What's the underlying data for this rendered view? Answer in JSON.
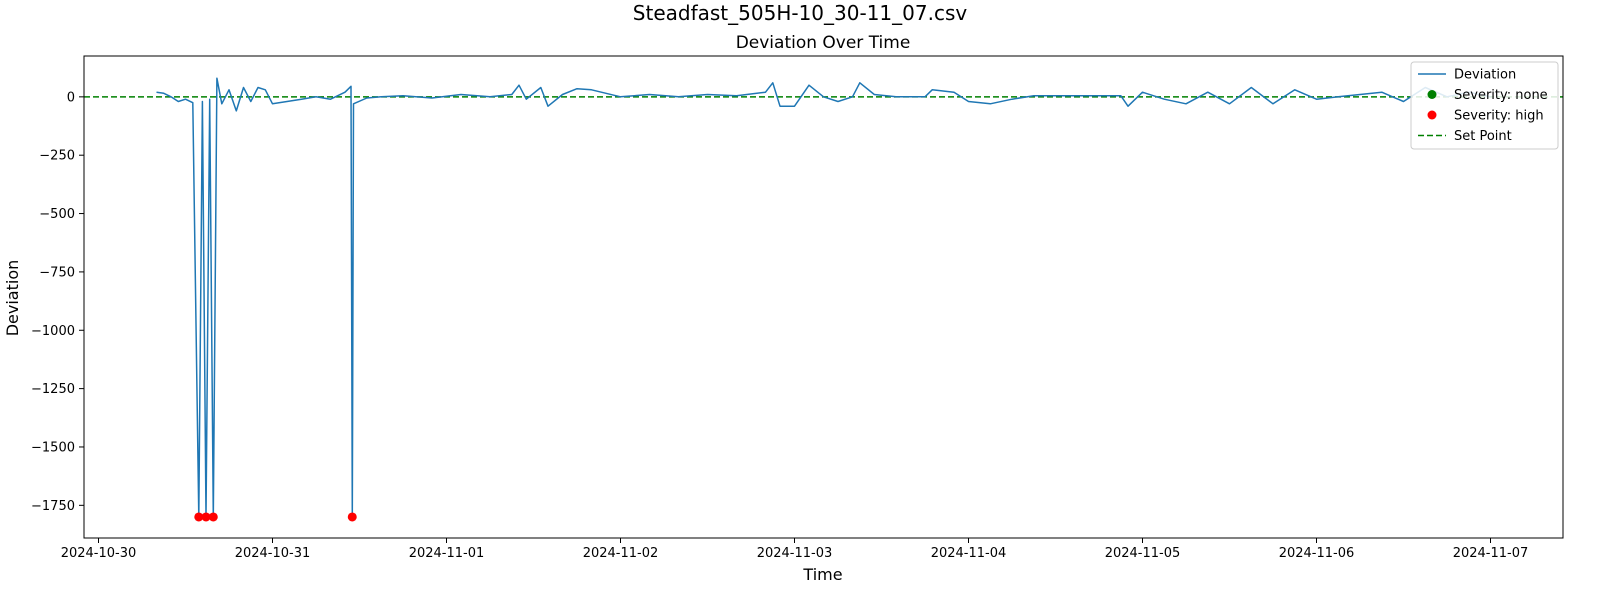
{
  "figure_title": "Steadfast_505H-10_30-11_07.csv",
  "chart_data": {
    "type": "line",
    "title": "Deviation Over Time",
    "xlabel": "Time",
    "ylabel": "Deviation",
    "x_ticks": [
      "2024-10-30",
      "2024-10-31",
      "2024-11-01",
      "2024-11-02",
      "2024-11-03",
      "2024-11-04",
      "2024-11-05",
      "2024-11-06",
      "2024-11-07"
    ],
    "y_ticks": [
      0,
      -250,
      -500,
      -750,
      -1000,
      -1250,
      -1500,
      -1750
    ],
    "y_tick_labels": [
      "0",
      "−250",
      "−500",
      "−750",
      "−1000",
      "−1250",
      "−1500",
      "−1750"
    ],
    "xlim": [
      "2024-10-29T22:00",
      "2024-11-07T10:00"
    ],
    "ylim": [
      -1890,
      175
    ],
    "set_point": 0,
    "legend": {
      "placement": "upper-right",
      "entries": [
        {
          "label": "Deviation",
          "kind": "line",
          "color": "#1f77b4"
        },
        {
          "label": "Severity: none",
          "kind": "marker",
          "color": "#008000"
        },
        {
          "label": "Severity: high",
          "kind": "marker",
          "color": "#ff0000"
        },
        {
          "label": "Set Point",
          "kind": "dashed",
          "color": "#008000"
        }
      ]
    },
    "series": [
      {
        "name": "Deviation",
        "color": "#1f77b4",
        "points": [
          [
            "2024-10-30T08:00",
            20
          ],
          [
            "2024-10-30T09:00",
            15
          ],
          [
            "2024-10-30T10:00",
            0
          ],
          [
            "2024-10-30T11:00",
            -20
          ],
          [
            "2024-10-30T12:00",
            -10
          ],
          [
            "2024-10-30T13:00",
            -25
          ],
          [
            "2024-10-30T13:50",
            -1800
          ],
          [
            "2024-10-30T14:20",
            -20
          ],
          [
            "2024-10-30T14:50",
            -1800
          ],
          [
            "2024-10-30T15:20",
            -10
          ],
          [
            "2024-10-30T15:50",
            -1800
          ],
          [
            "2024-10-30T16:20",
            80
          ],
          [
            "2024-10-30T17:00",
            -30
          ],
          [
            "2024-10-30T18:00",
            30
          ],
          [
            "2024-10-30T19:00",
            -60
          ],
          [
            "2024-10-30T20:00",
            40
          ],
          [
            "2024-10-30T21:00",
            -20
          ],
          [
            "2024-10-30T22:00",
            40
          ],
          [
            "2024-10-30T23:00",
            30
          ],
          [
            "2024-10-31T00:00",
            -30
          ],
          [
            "2024-10-31T02:00",
            -20
          ],
          [
            "2024-10-31T04:00",
            -10
          ],
          [
            "2024-10-31T06:00",
            0
          ],
          [
            "2024-10-31T08:00",
            -10
          ],
          [
            "2024-10-31T10:00",
            20
          ],
          [
            "2024-10-31T10:50",
            45
          ],
          [
            "2024-10-31T11:00",
            -1800
          ],
          [
            "2024-10-31T11:10",
            -30
          ],
          [
            "2024-10-31T13:00",
            -5
          ],
          [
            "2024-10-31T15:00",
            0
          ],
          [
            "2024-10-31T18:00",
            5
          ],
          [
            "2024-10-31T22:00",
            -5
          ],
          [
            "2024-11-01T02:00",
            10
          ],
          [
            "2024-11-01T06:00",
            0
          ],
          [
            "2024-11-01T09:00",
            10
          ],
          [
            "2024-11-01T10:00",
            50
          ],
          [
            "2024-11-01T11:00",
            -10
          ],
          [
            "2024-11-01T13:00",
            40
          ],
          [
            "2024-11-01T14:00",
            -40
          ],
          [
            "2024-11-01T16:00",
            10
          ],
          [
            "2024-11-01T18:00",
            35
          ],
          [
            "2024-11-01T20:00",
            30
          ],
          [
            "2024-11-02T00:00",
            0
          ],
          [
            "2024-11-02T04:00",
            10
          ],
          [
            "2024-11-02T08:00",
            0
          ],
          [
            "2024-11-02T12:00",
            10
          ],
          [
            "2024-11-02T16:00",
            5
          ],
          [
            "2024-11-02T20:00",
            20
          ],
          [
            "2024-11-02T21:00",
            60
          ],
          [
            "2024-11-02T22:00",
            -40
          ],
          [
            "2024-11-03T00:00",
            -40
          ],
          [
            "2024-11-03T02:00",
            50
          ],
          [
            "2024-11-03T04:00",
            0
          ],
          [
            "2024-11-03T06:00",
            -20
          ],
          [
            "2024-11-03T08:00",
            0
          ],
          [
            "2024-11-03T09:00",
            60
          ],
          [
            "2024-11-03T11:00",
            10
          ],
          [
            "2024-11-03T14:00",
            0
          ],
          [
            "2024-11-03T18:00",
            0
          ],
          [
            "2024-11-03T19:00",
            30
          ],
          [
            "2024-11-03T22:00",
            20
          ],
          [
            "2024-11-04T00:00",
            -20
          ],
          [
            "2024-11-04T03:00",
            -30
          ],
          [
            "2024-11-04T06:00",
            -10
          ],
          [
            "2024-11-04T09:00",
            5
          ],
          [
            "2024-11-04T12:00",
            5
          ],
          [
            "2024-11-04T18:00",
            5
          ],
          [
            "2024-11-04T21:00",
            5
          ],
          [
            "2024-11-04T22:00",
            -40
          ],
          [
            "2024-11-05T00:00",
            20
          ],
          [
            "2024-11-05T03:00",
            -10
          ],
          [
            "2024-11-05T06:00",
            -30
          ],
          [
            "2024-11-05T09:00",
            20
          ],
          [
            "2024-11-05T12:00",
            -30
          ],
          [
            "2024-11-05T15:00",
            40
          ],
          [
            "2024-11-05T18:00",
            -30
          ],
          [
            "2024-11-05T21:00",
            30
          ],
          [
            "2024-11-06T00:00",
            -10
          ],
          [
            "2024-11-06T03:00",
            0
          ],
          [
            "2024-11-06T06:00",
            10
          ],
          [
            "2024-11-06T09:00",
            20
          ],
          [
            "2024-11-06T12:00",
            -20
          ],
          [
            "2024-11-06T15:00",
            40
          ],
          [
            "2024-11-06T18:00",
            0
          ],
          [
            "2024-11-06T21:00",
            20
          ],
          [
            "2024-11-07T00:00",
            0
          ]
        ]
      }
    ],
    "severity_high_points": [
      [
        "2024-10-30T13:50",
        -1800
      ],
      [
        "2024-10-30T14:50",
        -1800
      ],
      [
        "2024-10-30T15:50",
        -1800
      ],
      [
        "2024-10-31T11:00",
        -1800
      ]
    ]
  }
}
